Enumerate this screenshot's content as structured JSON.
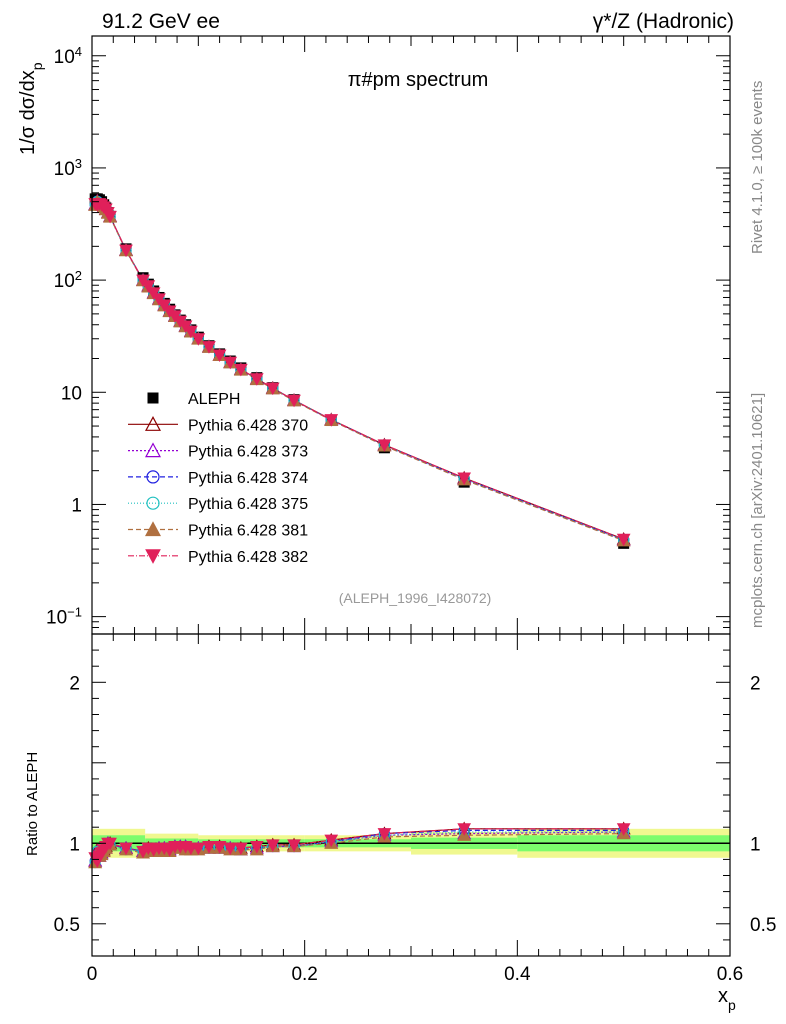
{
  "header": {
    "left": "91.2 GeV ee",
    "right": "γ*/Z (Hadronic)"
  },
  "side_labels": {
    "rivet": "Rivet 4.1.0, ≥ 100k events",
    "mcplots": "mcplots.cern.ch [arXiv:2401.10621]"
  },
  "chart_data": {
    "type": "scatter",
    "title": "π#pm spectrum",
    "watermark": "(ALEPH_1996_I428072)",
    "xlabel": "x_p",
    "ylabel": "1/σ  dσ/dx_p",
    "xlim": [
      0,
      0.6
    ],
    "ylim": [
      0.07,
      15000
    ],
    "yscale": "log",
    "x_ticks": [
      "0",
      "0.2",
      "0.4",
      "0.6"
    ],
    "y_ticks": [
      {
        "value": 10000,
        "base": "10",
        "exp": "4"
      },
      {
        "value": 1000,
        "base": "10",
        "exp": "3"
      },
      {
        "value": 100,
        "base": "10",
        "exp": "2"
      },
      {
        "value": 10,
        "base": "10",
        "exp": ""
      },
      {
        "value": 1,
        "base": "1",
        "exp": ""
      },
      {
        "value": 0.1,
        "base": "10",
        "exp": "−1"
      }
    ],
    "x": [
      0.003,
      0.005,
      0.007,
      0.009,
      0.011,
      0.013,
      0.015,
      0.017,
      0.032,
      0.048,
      0.053,
      0.058,
      0.063,
      0.068,
      0.073,
      0.078,
      0.083,
      0.088,
      0.093,
      0.1,
      0.11,
      0.12,
      0.13,
      0.14,
      0.155,
      0.17,
      0.19,
      0.225,
      0.275,
      0.35,
      0.5
    ],
    "series": [
      {
        "name": "ALEPH",
        "marker": "square",
        "color": "#000000",
        "dash": "",
        "values": [
          530,
          530,
          520,
          500,
          470,
          440,
          400,
          370,
          190,
          105,
          92,
          80,
          70,
          62,
          55,
          49,
          44,
          40,
          36,
          31,
          26,
          22,
          19,
          16.5,
          13.5,
          11,
          8.6,
          5.6,
          3.2,
          1.58,
          0.45
        ]
      },
      {
        "name": "Pythia 6.428 370",
        "marker": "triangle-open",
        "color": "#8b0000",
        "dash": "",
        "values": [
          470,
          510,
          480,
          470,
          450,
          430,
          400,
          370,
          185,
          100,
          89,
          77,
          68,
          60,
          53,
          48,
          43,
          39,
          35,
          30,
          25.5,
          21.5,
          18.5,
          16,
          13.2,
          10.9,
          8.5,
          5.7,
          3.4,
          1.72,
          0.49
        ]
      },
      {
        "name": "Pythia 6.428 373",
        "marker": "triangle-open",
        "color": "#9400d3",
        "dash": "2,2",
        "values": [
          470,
          505,
          480,
          468,
          448,
          428,
          398,
          368,
          184,
          100,
          88,
          77,
          68,
          60,
          53,
          48,
          43,
          39,
          35,
          30,
          25.3,
          21.4,
          18.4,
          15.9,
          13.1,
          10.8,
          8.45,
          5.65,
          3.35,
          1.68,
          0.48
        ]
      },
      {
        "name": "Pythia 6.428 374",
        "marker": "circle-open",
        "color": "#2020e0",
        "dash": "5,3",
        "values": [
          470,
          505,
          478,
          466,
          447,
          427,
          397,
          367,
          184,
          100,
          88,
          77,
          68,
          60,
          53,
          48,
          43,
          39,
          35,
          30,
          25.3,
          21.4,
          18.4,
          15.9,
          13.1,
          10.8,
          8.45,
          5.68,
          3.38,
          1.7,
          0.485
        ]
      },
      {
        "name": "Pythia 6.428 375",
        "marker": "circle-open",
        "color": "#20c0c0",
        "dash": "1,2",
        "values": [
          468,
          502,
          477,
          465,
          446,
          426,
          396,
          366,
          183,
          100,
          88,
          77,
          68,
          60,
          53,
          48,
          43,
          39,
          35,
          30,
          25.3,
          21.4,
          18.4,
          15.9,
          13.1,
          10.8,
          8.45,
          5.67,
          3.37,
          1.69,
          0.48
        ]
      },
      {
        "name": "Pythia 6.428 381",
        "marker": "triangle-filled",
        "color": "#b07040",
        "dash": "5,3",
        "values": [
          465,
          500,
          476,
          464,
          445,
          425,
          395,
          365,
          183,
          99,
          87,
          76,
          67,
          59,
          52.5,
          47.5,
          42.5,
          38.5,
          34.5,
          29.8,
          25.2,
          21.3,
          18.3,
          15.8,
          13,
          10.75,
          8.4,
          5.62,
          3.33,
          1.66,
          0.475
        ]
      },
      {
        "name": "Pythia 6.428 382",
        "marker": "triangle-down-filled",
        "color": "#e0205a",
        "dash": "6,2,1,2",
        "values": [
          480,
          470,
          480,
          470,
          450,
          430,
          400,
          370,
          185,
          100,
          89,
          77,
          68,
          60,
          53,
          48,
          43,
          39,
          35,
          30,
          25.5,
          21.5,
          18.5,
          16,
          13.2,
          10.9,
          8.5,
          5.7,
          3.4,
          1.72,
          0.49
        ]
      }
    ],
    "ratio": {
      "ylabel": "Ratio to ALEPH",
      "ylim": [
        0.3,
        2.3
      ],
      "y_ticks": [
        "0.5",
        "1",
        "2"
      ],
      "band_color_inner": "#7cfc6c",
      "band_color_outer": "#f0f890",
      "values": {
        "Pythia 6.428 370": [
          0.89,
          0.96,
          0.92,
          0.94,
          0.96,
          0.98,
          1.0,
          1.0,
          0.97,
          0.95,
          0.97,
          0.96,
          0.97,
          0.97,
          0.96,
          0.98,
          0.98,
          0.98,
          0.97,
          0.97,
          0.98,
          0.98,
          0.97,
          0.97,
          0.98,
          0.99,
          0.99,
          1.02,
          1.06,
          1.09,
          1.09
        ],
        "Pythia 6.428 373": [
          0.89,
          0.95,
          0.92,
          0.94,
          0.95,
          0.97,
          1.0,
          0.99,
          0.97,
          0.95,
          0.96,
          0.96,
          0.97,
          0.97,
          0.96,
          0.98,
          0.98,
          0.98,
          0.97,
          0.97,
          0.97,
          0.97,
          0.97,
          0.96,
          0.97,
          0.98,
          0.98,
          1.01,
          1.05,
          1.06,
          1.07
        ],
        "Pythia 6.428 374": [
          0.89,
          0.95,
          0.92,
          0.93,
          0.95,
          0.97,
          0.99,
          0.99,
          0.97,
          0.95,
          0.96,
          0.96,
          0.97,
          0.97,
          0.96,
          0.98,
          0.98,
          0.98,
          0.97,
          0.97,
          0.97,
          0.97,
          0.97,
          0.96,
          0.97,
          0.98,
          0.98,
          1.01,
          1.06,
          1.08,
          1.08
        ],
        "Pythia 6.428 375": [
          0.88,
          0.95,
          0.92,
          0.93,
          0.95,
          0.97,
          0.99,
          0.99,
          0.96,
          0.95,
          0.96,
          0.96,
          0.97,
          0.97,
          0.96,
          0.98,
          0.98,
          0.98,
          0.97,
          0.97,
          0.97,
          0.97,
          0.97,
          0.96,
          0.97,
          0.98,
          0.98,
          1.01,
          1.05,
          1.07,
          1.07
        ],
        "Pythia 6.428 381": [
          0.88,
          0.94,
          0.92,
          0.93,
          0.95,
          0.97,
          0.99,
          0.99,
          0.96,
          0.94,
          0.95,
          0.95,
          0.96,
          0.95,
          0.95,
          0.97,
          0.97,
          0.96,
          0.96,
          0.96,
          0.97,
          0.97,
          0.96,
          0.96,
          0.96,
          0.98,
          0.98,
          1.0,
          1.04,
          1.05,
          1.06
        ],
        "Pythia 6.428 382": [
          0.91,
          0.89,
          0.92,
          0.94,
          0.96,
          0.98,
          1.0,
          1.0,
          0.97,
          0.95,
          0.97,
          0.96,
          0.97,
          0.97,
          0.96,
          0.98,
          0.98,
          0.98,
          0.97,
          0.97,
          0.98,
          0.98,
          0.97,
          0.97,
          0.98,
          0.99,
          0.99,
          1.02,
          1.06,
          1.09,
          1.09
        ]
      }
    }
  }
}
